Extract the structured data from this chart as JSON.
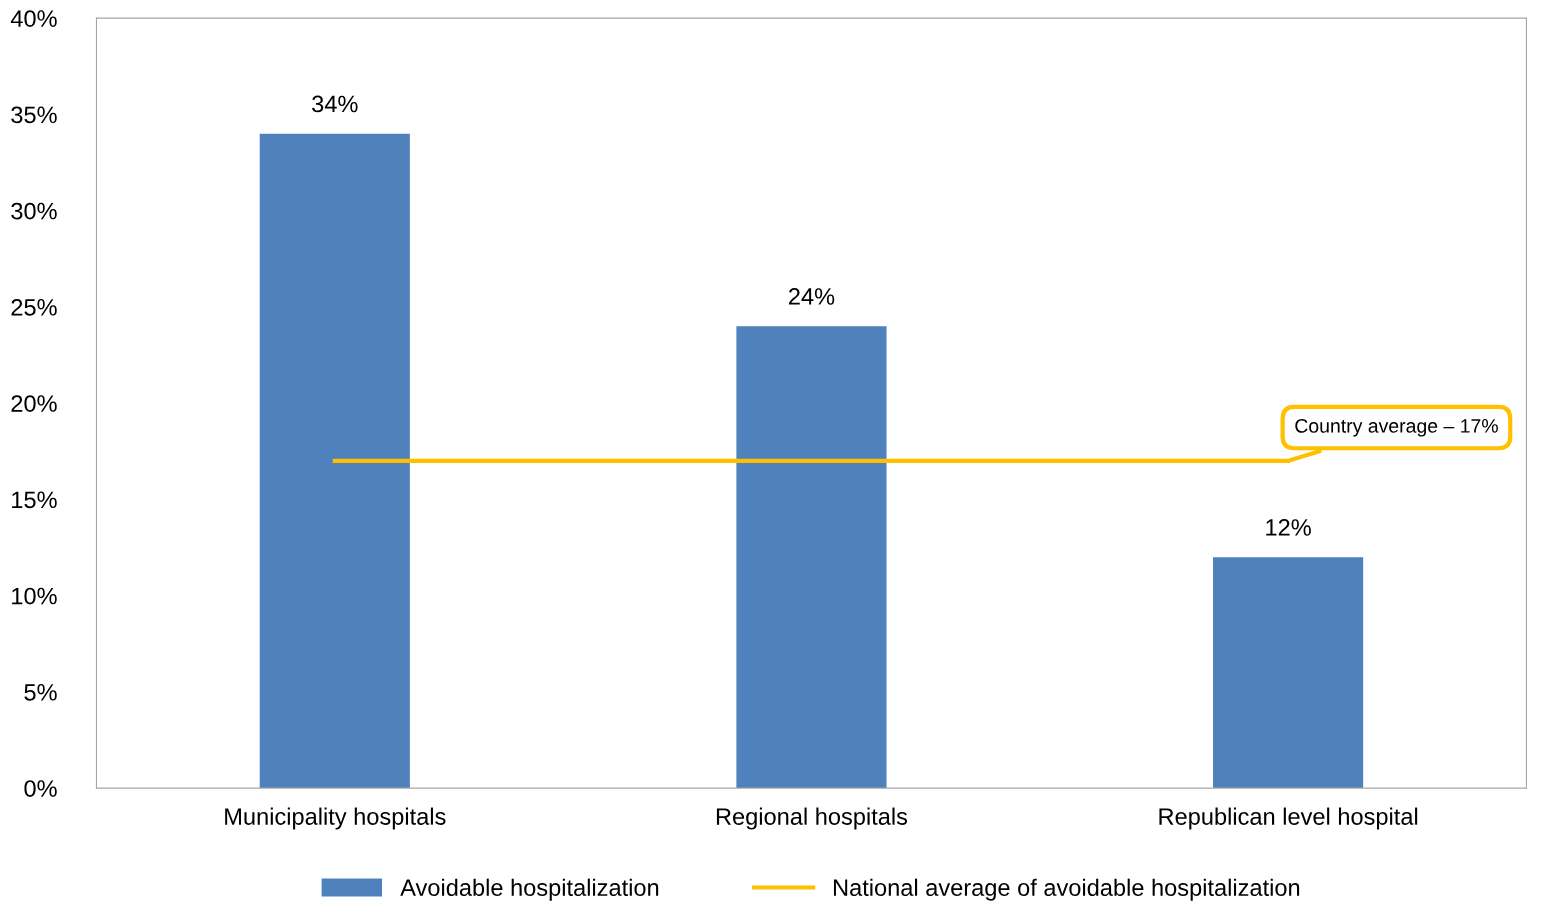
{
  "chart_data": {
    "type": "bar",
    "categories": [
      "Municipality hospitals",
      "Regional hospitals",
      "Republican level hospital"
    ],
    "series": [
      {
        "name": "Avoidable hospitalization",
        "color": "#4f81bd",
        "values": [
          34,
          24,
          12
        ],
        "value_labels": [
          "34%",
          "24%",
          "12%"
        ]
      },
      {
        "name": "National average of avoidable hospitalization",
        "type": "line",
        "color": "#ffc000",
        "values": [
          17,
          17,
          17
        ]
      }
    ],
    "ylim": [
      0,
      40
    ],
    "yticks": [
      {
        "value": 0,
        "label": "0%"
      },
      {
        "value": 5,
        "label": "5%"
      },
      {
        "value": 10,
        "label": "10%"
      },
      {
        "value": 15,
        "label": "15%"
      },
      {
        "value": 20,
        "label": "20%"
      },
      {
        "value": 25,
        "label": "25%"
      },
      {
        "value": 30,
        "label": "30%"
      },
      {
        "value": 35,
        "label": "35%"
      },
      {
        "value": 40,
        "label": "40%"
      }
    ],
    "annotations": [
      {
        "text": "Country average – 17%",
        "x": "Republican level hospital",
        "y": 17
      }
    ],
    "legend": "bottom",
    "grid": false,
    "marker": "none"
  }
}
